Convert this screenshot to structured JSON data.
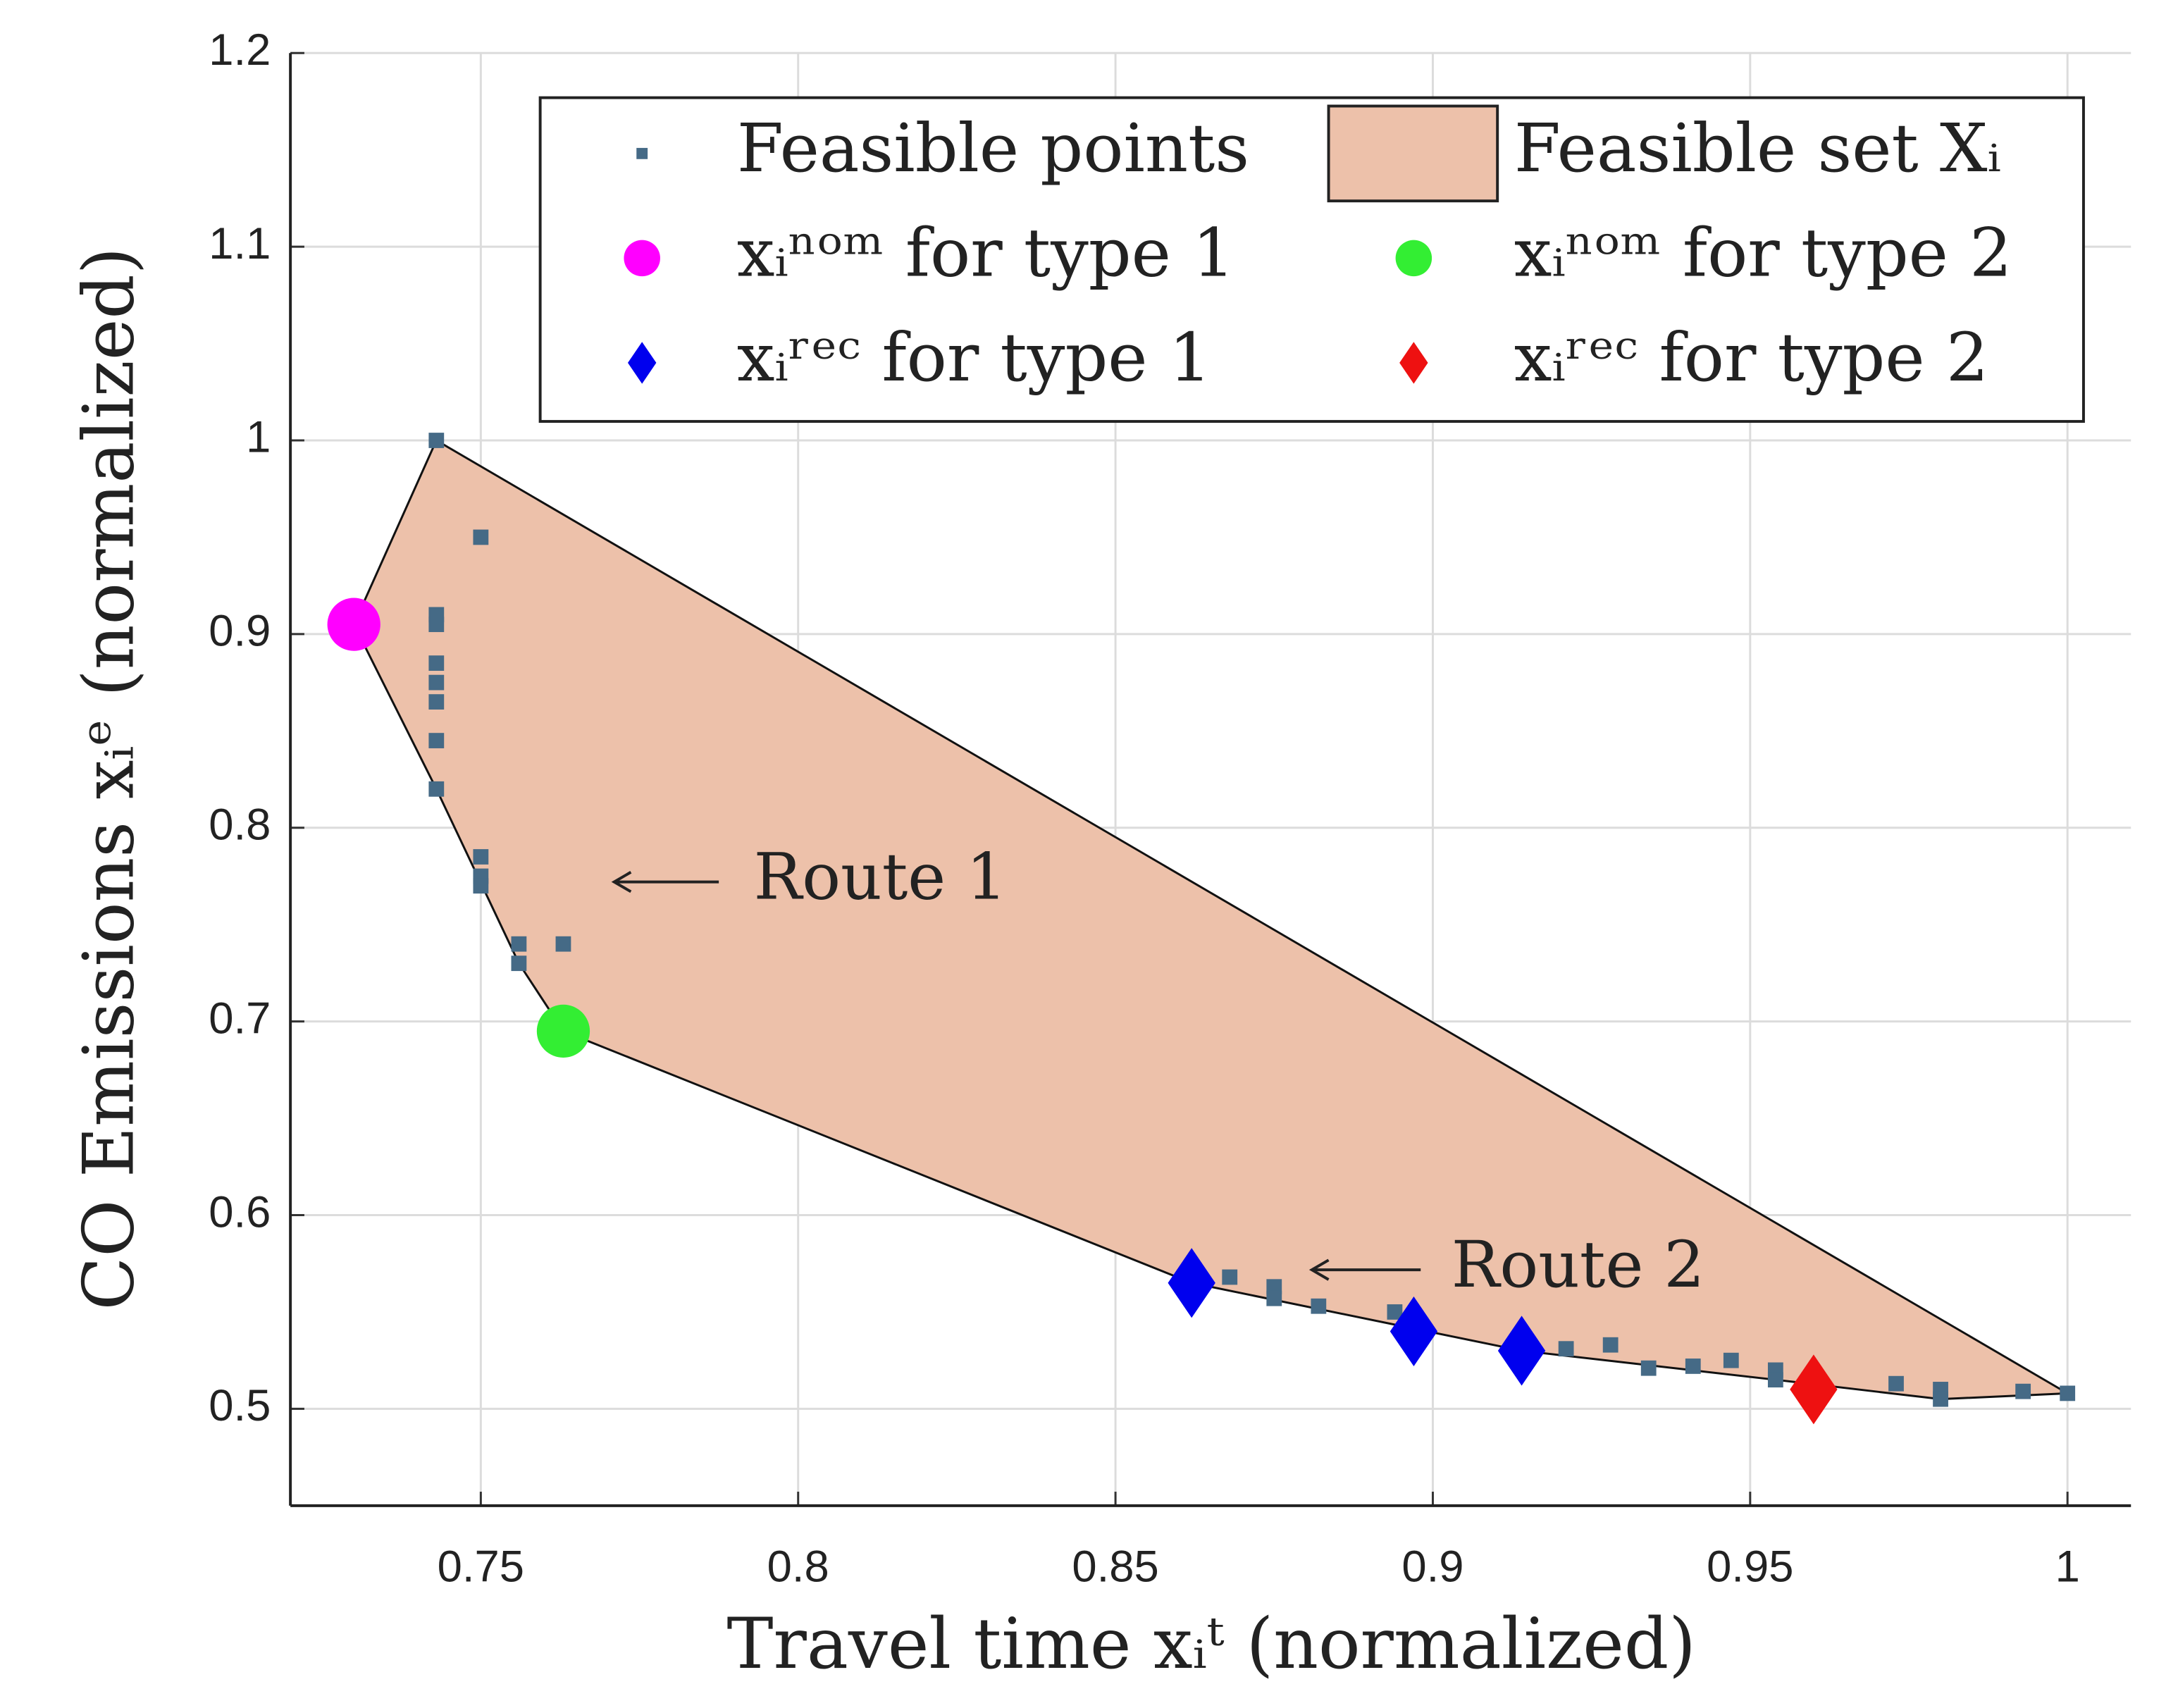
{
  "chart_data": {
    "type": "scatter",
    "x_label": "Travel time xᵢᵗ (normalized)",
    "y_label": "CO Emissions xᵢᵉ (normalized)",
    "xlim": [
      0.72,
      1.01
    ],
    "ylim": [
      0.45,
      1.2
    ],
    "xticks": [
      0.75,
      0.8,
      0.85,
      0.9,
      0.95,
      1
    ],
    "yticks": [
      0.5,
      0.6,
      0.7,
      0.8,
      0.9,
      1,
      1.1,
      1.2
    ],
    "grid": true,
    "region": {
      "name": "Feasible set Xᵢ",
      "color": "#edc1aa",
      "x": [
        0.743,
        0.73,
        0.743,
        0.756,
        0.763,
        0.862,
        0.914,
        0.954,
        0.98,
        1.0
      ],
      "values": [
        1.0,
        0.905,
        0.82,
        0.73,
        0.695,
        0.565,
        0.53,
        0.515,
        0.505,
        0.508
      ]
    },
    "series": [
      {
        "name": "Feasible points",
        "color": "#456a86",
        "marker": "square",
        "x": [
          0.743,
          0.75,
          0.743,
          0.743,
          0.743,
          0.743,
          0.743,
          0.743,
          0.743,
          0.75,
          0.75,
          0.75,
          0.756,
          0.756,
          0.763,
          0.868,
          0.875,
          0.875,
          0.882,
          0.894,
          0.921,
          0.928,
          0.934,
          0.941,
          0.947,
          0.954,
          0.954,
          0.973,
          0.98,
          0.98,
          0.993,
          1.0
        ],
        "values": [
          1.0,
          0.95,
          0.91,
          0.905,
          0.885,
          0.875,
          0.865,
          0.845,
          0.82,
          0.785,
          0.775,
          0.77,
          0.74,
          0.73,
          0.74,
          0.568,
          0.563,
          0.557,
          0.553,
          0.55,
          0.531,
          0.533,
          0.521,
          0.522,
          0.525,
          0.52,
          0.515,
          0.513,
          0.51,
          0.505,
          0.509,
          0.508
        ]
      },
      {
        "name": "xᵢⁿᵒᵐ for type 1",
        "color": "#ff00ff",
        "marker": "circle",
        "x": [
          0.73
        ],
        "values": [
          0.905
        ]
      },
      {
        "name": "xᵢⁿᵒᵐ for type 2",
        "color": "#33ee33",
        "marker": "circle",
        "x": [
          0.763
        ],
        "values": [
          0.695
        ]
      },
      {
        "name": "xᵢʳᵉᶜ for type 1",
        "color": "#0000ee",
        "marker": "diamond",
        "x": [
          0.862,
          0.897,
          0.914
        ],
        "values": [
          0.565,
          0.54,
          0.53
        ]
      },
      {
        "name": "xᵢʳᵉᶜ for type 2",
        "color": "#ee1111",
        "marker": "diamond",
        "x": [
          0.96
        ],
        "values": [
          0.51
        ]
      }
    ],
    "annotations": [
      "Route 1",
      "Route 2"
    ]
  }
}
